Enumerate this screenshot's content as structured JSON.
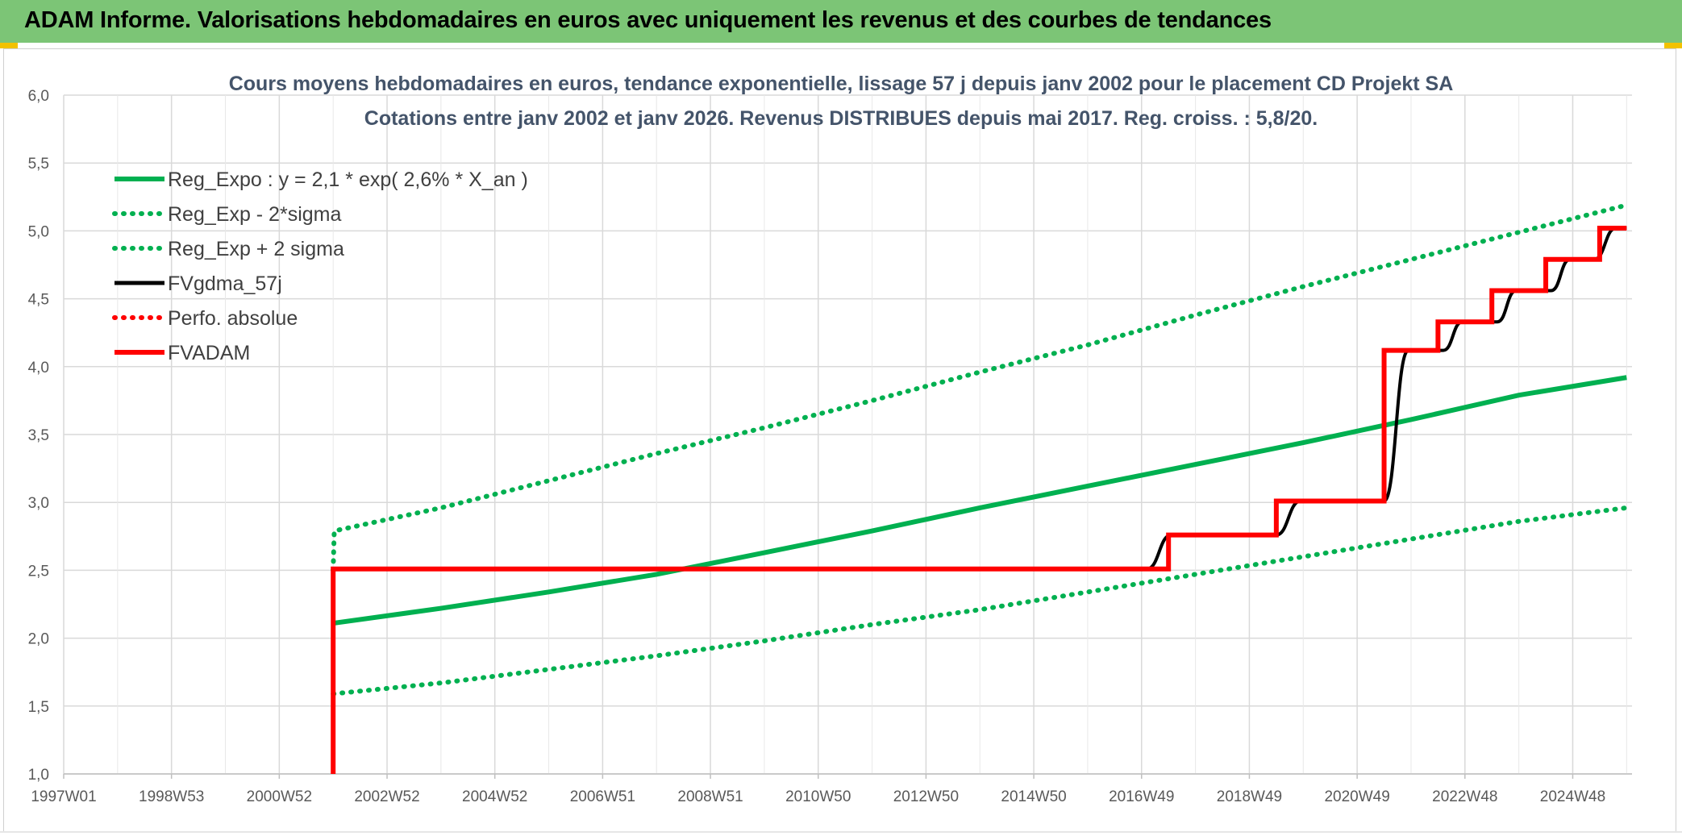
{
  "header": {
    "title": "ADAM Informe. Valorisations hebdomadaires en euros avec uniquement les revenus et des courbes de tendances"
  },
  "colors": {
    "header_bg": "#7cc576",
    "green": "#00b050",
    "black": "#000000",
    "red": "#ff0000",
    "grid": "#d9d9d9",
    "title": "#44546a"
  },
  "chart_data": {
    "type": "line",
    "title_line1": "Cours moyens hebdomadaires en euros, tendance exponentielle, lissage 57 j depuis janv 2002 pour le placement CD Projekt SA",
    "title_line2": "Cotations entre janv 2002 et janv 2026. Revenus DISTRIBUES depuis mai 2017. Reg. croiss. : 5,8/20.",
    "xlabel": "",
    "ylabel": "",
    "xlim": [
      1997.0,
      2026.1
    ],
    "ylim": [
      1.0,
      6.0
    ],
    "x_tick_labels": [
      "1997W01",
      "1998W53",
      "2000W52",
      "2002W52",
      "2004W52",
      "2006W51",
      "2008W51",
      "2010W50",
      "2012W50",
      "2014W50",
      "2016W49",
      "2018W49",
      "2020W49",
      "2022W48",
      "2024W48"
    ],
    "x_tick_positions": [
      1997.0,
      1999.0,
      2001.0,
      2003.0,
      2005.0,
      2007.0,
      2009.0,
      2011.0,
      2013.0,
      2015.0,
      2017.0,
      2019.0,
      2021.0,
      2023.0,
      2025.0
    ],
    "y_tick_labels": [
      "1,0",
      "1,5",
      "2,0",
      "2,5",
      "3,0",
      "3,5",
      "4,0",
      "4,5",
      "5,0",
      "5,5",
      "6,0"
    ],
    "y_tick_values": [
      1.0,
      1.5,
      2.0,
      2.5,
      3.0,
      3.5,
      4.0,
      4.5,
      5.0,
      5.5,
      6.0
    ],
    "grid": true,
    "legend_position": "top-left",
    "series": [
      {
        "name": "Reg_Expo : y = 2,1 * exp( 2,6% *  X_an )",
        "style": "solid-thick",
        "color": "#00b050",
        "points": [
          [
            2002.0,
            2.11
          ],
          [
            2004.0,
            2.22
          ],
          [
            2006.0,
            2.34
          ],
          [
            2008.0,
            2.47
          ],
          [
            2010.0,
            2.63
          ],
          [
            2012.0,
            2.79
          ],
          [
            2014.0,
            2.96
          ],
          [
            2016.0,
            3.12
          ],
          [
            2018.0,
            3.28
          ],
          [
            2020.0,
            3.44
          ],
          [
            2022.0,
            3.61
          ],
          [
            2024.0,
            3.79
          ],
          [
            2026.0,
            3.92
          ]
        ]
      },
      {
        "name": "Reg_Exp - 2*sigma",
        "style": "dotted",
        "color": "#00b050",
        "points": [
          [
            2002.0,
            1.59
          ],
          [
            2004.0,
            1.67
          ],
          [
            2006.0,
            1.77
          ],
          [
            2008.0,
            1.87
          ],
          [
            2010.0,
            1.98
          ],
          [
            2012.0,
            2.1
          ],
          [
            2014.0,
            2.21
          ],
          [
            2016.0,
            2.34
          ],
          [
            2018.0,
            2.47
          ],
          [
            2020.0,
            2.6
          ],
          [
            2022.0,
            2.73
          ],
          [
            2024.0,
            2.86
          ],
          [
            2026.0,
            2.96
          ]
        ]
      },
      {
        "name": "Reg_Exp + 2 sigma",
        "style": "dotted",
        "color": "#00b050",
        "points": [
          [
            2002.0,
            2.5
          ],
          [
            2002.02,
            2.79
          ],
          [
            2004.0,
            2.96
          ],
          [
            2006.0,
            3.16
          ],
          [
            2008.0,
            3.36
          ],
          [
            2010.0,
            3.55
          ],
          [
            2012.0,
            3.75
          ],
          [
            2014.0,
            3.96
          ],
          [
            2016.0,
            4.16
          ],
          [
            2018.0,
            4.38
          ],
          [
            2020.0,
            4.59
          ],
          [
            2022.0,
            4.79
          ],
          [
            2024.0,
            4.99
          ],
          [
            2026.0,
            5.19
          ]
        ]
      },
      {
        "name": "FVgdma_57j",
        "style": "solid-smooth-steps",
        "color": "#000000",
        "points": [
          [
            2017.1,
            2.51
          ],
          [
            2017.55,
            2.76
          ],
          [
            2019.5,
            2.76
          ],
          [
            2019.95,
            3.01
          ],
          [
            2021.5,
            3.01
          ],
          [
            2021.95,
            4.12
          ],
          [
            2022.6,
            4.12
          ],
          [
            2022.95,
            4.33
          ],
          [
            2023.6,
            4.33
          ],
          [
            2023.95,
            4.56
          ],
          [
            2024.6,
            4.56
          ],
          [
            2024.95,
            4.79
          ],
          [
            2025.4,
            4.79
          ],
          [
            2025.8,
            5.02
          ],
          [
            2026.0,
            5.02
          ]
        ]
      },
      {
        "name": "Perfo. absolue",
        "style": "dotted",
        "color": "#ff0000",
        "points": []
      },
      {
        "name": "FVADAM",
        "style": "solid-thick-steps",
        "color": "#ff0000",
        "points": [
          [
            2002.0,
            1.0
          ],
          [
            2002.0,
            2.51
          ],
          [
            2017.5,
            2.51
          ],
          [
            2017.5,
            2.76
          ],
          [
            2019.5,
            2.76
          ],
          [
            2019.5,
            3.01
          ],
          [
            2021.5,
            3.01
          ],
          [
            2021.5,
            4.12
          ],
          [
            2022.5,
            4.12
          ],
          [
            2022.5,
            4.33
          ],
          [
            2023.5,
            4.33
          ],
          [
            2023.5,
            4.56
          ],
          [
            2024.5,
            4.56
          ],
          [
            2024.5,
            4.79
          ],
          [
            2025.5,
            4.79
          ],
          [
            2025.5,
            5.02
          ],
          [
            2026.0,
            5.02
          ]
        ]
      }
    ]
  }
}
